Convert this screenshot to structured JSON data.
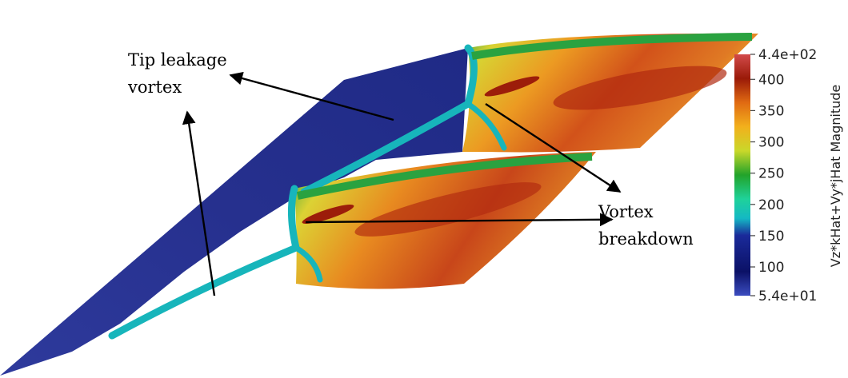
{
  "annotations": {
    "tip_leakage": [
      "Tip leakage",
      "vortex"
    ],
    "vortex_breakdown": [
      "Vortex",
      "breakdown"
    ]
  },
  "colorbar": {
    "title": "Vz*kHat+Vy*jHat Magnitude",
    "max_label": "4.4e+02",
    "min_label": "5.4e+01",
    "ticks": [
      "400",
      "350",
      "300",
      "250",
      "200",
      "150",
      "100"
    ],
    "range": [
      54,
      440
    ],
    "tick_values": [
      400,
      350,
      300,
      250,
      200,
      150,
      100
    ],
    "colormap": [
      "#3b4cc0",
      "#0b1166",
      "#14b8c4",
      "#1fd29a",
      "#22a32a",
      "#c9d82a",
      "#f2b01c",
      "#e06a12",
      "#9a1a08",
      "#d24a4a"
    ]
  },
  "colors": {
    "low": "#2f3592",
    "vortex_core": "#16b9bc",
    "mid_green": "#28a83a",
    "yellow": "#e8d23a",
    "orange": "#e0771e",
    "red": "#9c1d0a"
  }
}
